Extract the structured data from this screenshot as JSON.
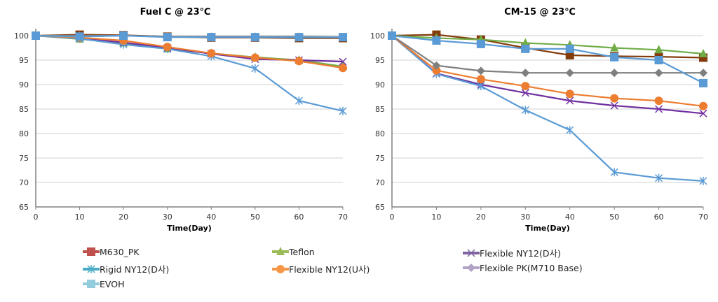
{
  "chart_data": [
    {
      "type": "line",
      "title": "Fuel C @ 23℃",
      "xlabel": "Time(Day)",
      "ylabel": "",
      "x": [
        0,
        10,
        20,
        30,
        40,
        50,
        60,
        70
      ],
      "xlim": [
        0,
        70
      ],
      "ylim": [
        65,
        100
      ],
      "yticks": [
        65,
        70,
        75,
        80,
        85,
        90,
        95,
        100
      ],
      "grid": true,
      "series": [
        {
          "name": "M630_PK",
          "values": [
            100,
            100.2,
            100.1,
            99.8,
            99.6,
            99.6,
            99.5,
            99.5
          ]
        },
        {
          "name": "Teflon",
          "values": [
            100,
            99.3,
            98.5,
            97.3,
            96.4,
            95.6,
            95.0,
            93.7
          ]
        },
        {
          "name": "Flexible NY12(D사)",
          "values": [
            100,
            99.5,
            98.6,
            97.5,
            96.3,
            95.2,
            95.0,
            94.7
          ]
        },
        {
          "name": "Rigid NY12(D사)",
          "values": [
            100,
            99.4,
            98.2,
            97.3,
            95.8,
            93.3,
            86.7,
            84.6
          ]
        },
        {
          "name": "Flexible NY12(U사)",
          "values": [
            100,
            99.6,
            99.0,
            97.7,
            96.4,
            95.5,
            94.8,
            93.4
          ]
        },
        {
          "name": "Flexible PK(M710 Base)",
          "values": [
            100,
            100,
            100,
            99.8,
            99.8,
            99.8,
            99.8,
            99.7
          ]
        },
        {
          "name": "EVOH",
          "values": [
            100,
            99.8,
            100,
            99.7,
            99.7,
            99.7,
            99.7,
            99.7
          ]
        }
      ]
    },
    {
      "type": "line",
      "title": "CM-15 @ 23℃",
      "xlabel": "Time(Day)",
      "ylabel": "",
      "x": [
        0,
        10,
        20,
        30,
        40,
        50,
        60,
        70
      ],
      "xlim": [
        0,
        70
      ],
      "ylim": [
        65,
        100
      ],
      "yticks": [
        65,
        70,
        75,
        80,
        85,
        90,
        95,
        100
      ],
      "grid": true,
      "series": [
        {
          "name": "M630_PK",
          "values": [
            100,
            100.2,
            99.2,
            97.5,
            96.0,
            95.8,
            95.7,
            95.5
          ]
        },
        {
          "name": "Teflon",
          "values": [
            100,
            99.5,
            99.2,
            98.5,
            98.1,
            97.5,
            97.1,
            96.3
          ]
        },
        {
          "name": "Flexible NY12(D사)",
          "values": [
            100,
            92.3,
            90.0,
            88.3,
            86.7,
            85.7,
            85.0,
            84.1
          ]
        },
        {
          "name": "Rigid NY12(D사)",
          "values": [
            100,
            92.2,
            89.7,
            84.8,
            80.7,
            72.1,
            70.9,
            70.3
          ]
        },
        {
          "name": "Flexible NY12(U사)",
          "values": [
            100,
            92.9,
            91.1,
            89.7,
            88.1,
            87.2,
            86.7,
            85.6
          ]
        },
        {
          "name": "Flexible PK(M710 Base)",
          "values": [
            100,
            93.9,
            92.8,
            92.4,
            92.4,
            92.4,
            92.4,
            92.4
          ]
        },
        {
          "name": "EVOH",
          "values": [
            100,
            99.0,
            98.3,
            97.3,
            97.3,
            95.6,
            95.0,
            90.3
          ]
        }
      ]
    }
  ],
  "series_style": [
    {
      "marker": "square",
      "line": "#843c0c",
      "legend": "#c0504d"
    },
    {
      "marker": "triangle",
      "line": "#70ad47",
      "legend": "#9bbb59"
    },
    {
      "marker": "x",
      "line": "#7030a0",
      "legend": "#8064a2"
    },
    {
      "marker": "asterisk",
      "line": "#5b9bd5",
      "legend": "#4bacc6"
    },
    {
      "marker": "circle",
      "line": "#ed7d31",
      "legend": "#f79646"
    },
    {
      "marker": "diamond",
      "line": "#7f7f7f",
      "legend": "#b3a2c7"
    },
    {
      "marker": "square",
      "line": "#5b9bd5",
      "legend": "#93cddd"
    }
  ],
  "legend": {
    "placement": "bottom",
    "items": [
      "M630_PK",
      "Teflon",
      "Flexible NY12(D사)",
      "Rigid NY12(D사)",
      "Flexible NY12(U사)",
      "Flexible PK(M710 Base)",
      "EVOH"
    ]
  }
}
